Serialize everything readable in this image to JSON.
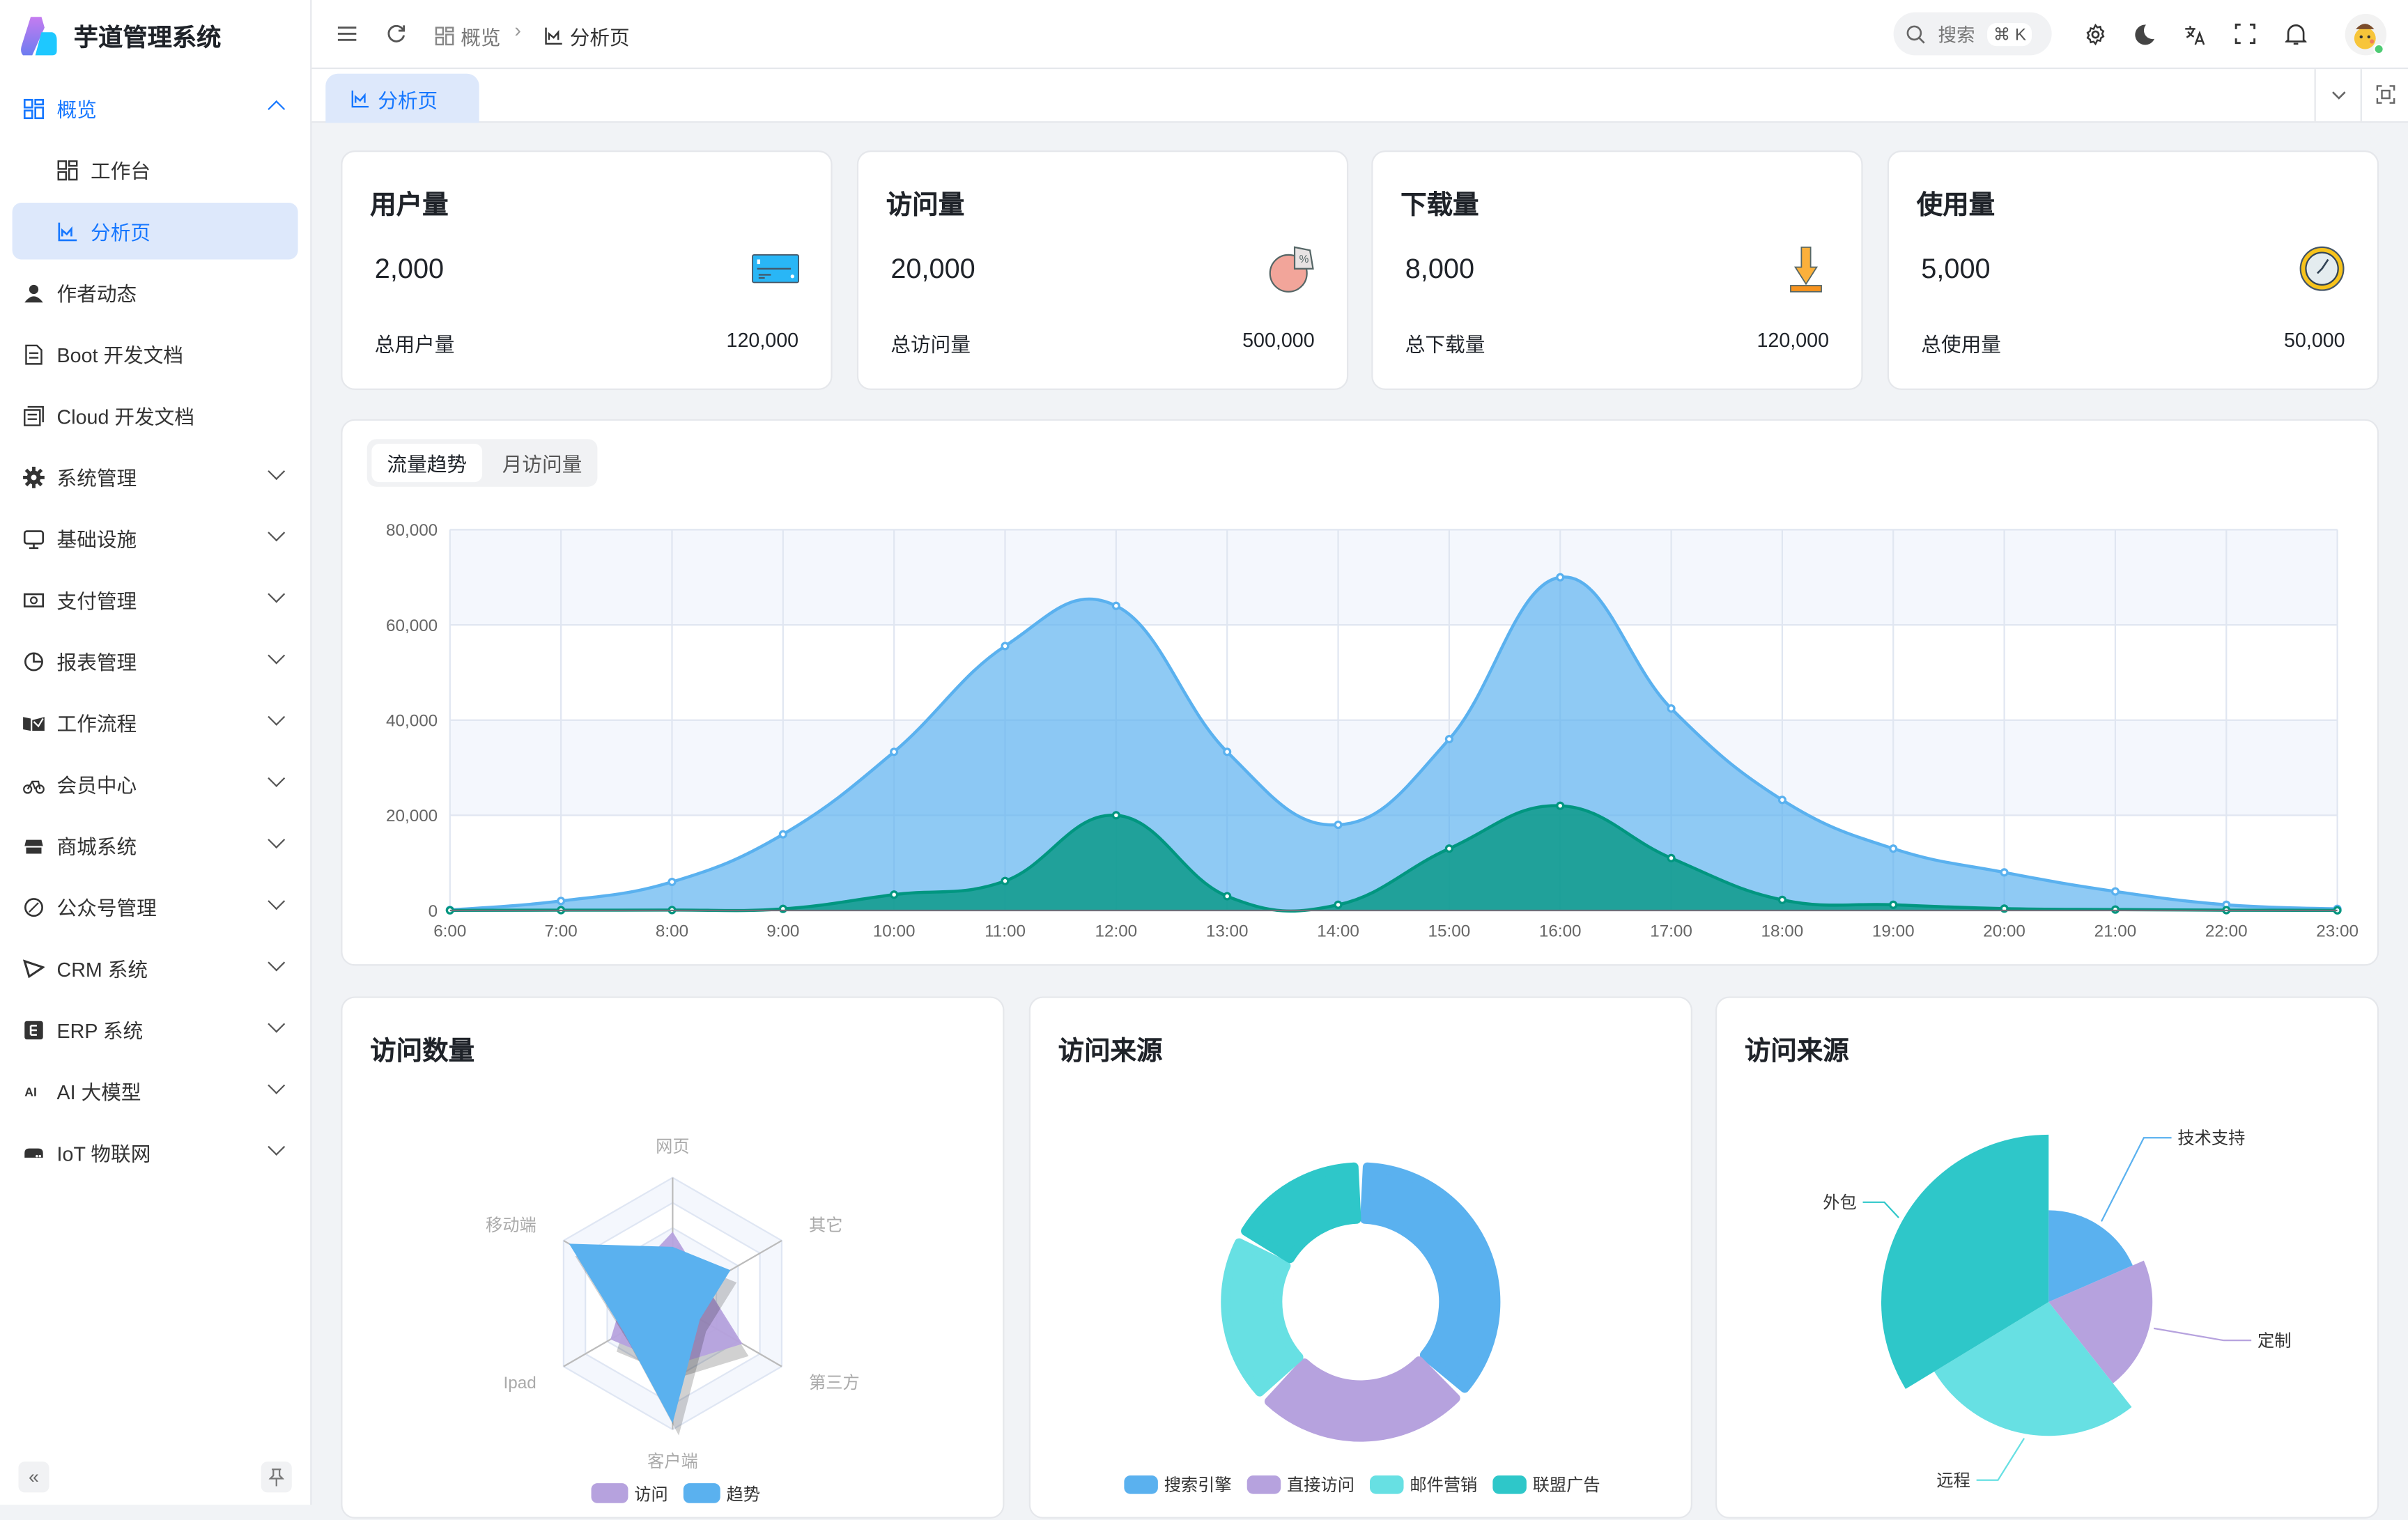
{
  "app": {
    "title": "芋道管理系统"
  },
  "sidebar": {
    "items": [
      {
        "label": "概览",
        "icon": "dashboard-icon",
        "chevron": "up",
        "level": 0,
        "state": "active-parent"
      },
      {
        "label": "工作台",
        "icon": "workspace-icon",
        "chevron": "",
        "level": 1,
        "state": ""
      },
      {
        "label": "分析页",
        "icon": "analytics-icon",
        "chevron": "",
        "level": 1,
        "state": "selected"
      },
      {
        "label": "作者动态",
        "icon": "user-icon",
        "chevron": "",
        "level": 0,
        "state": ""
      },
      {
        "label": "Boot 开发文档",
        "icon": "document-icon",
        "chevron": "",
        "level": 0,
        "state": ""
      },
      {
        "label": "Cloud 开发文档",
        "icon": "document-stack-icon",
        "chevron": "",
        "level": 0,
        "state": ""
      },
      {
        "label": "系统管理",
        "icon": "gear-icon",
        "chevron": "down",
        "level": 0,
        "state": ""
      },
      {
        "label": "基础设施",
        "icon": "monitor-icon",
        "chevron": "down",
        "level": 0,
        "state": ""
      },
      {
        "label": "支付管理",
        "icon": "payment-icon",
        "chevron": "down",
        "level": 0,
        "state": ""
      },
      {
        "label": "报表管理",
        "icon": "pie-chart-icon",
        "chevron": "down",
        "level": 0,
        "state": ""
      },
      {
        "label": "工作流程",
        "icon": "workflow-icon",
        "chevron": "down",
        "level": 0,
        "state": ""
      },
      {
        "label": "会员中心",
        "icon": "bicycle-icon",
        "chevron": "down",
        "level": 0,
        "state": ""
      },
      {
        "label": "商城系统",
        "icon": "shop-icon",
        "chevron": "down",
        "level": 0,
        "state": ""
      },
      {
        "label": "公众号管理",
        "icon": "compass-icon",
        "chevron": "down",
        "level": 0,
        "state": ""
      },
      {
        "label": "CRM 系统",
        "icon": "crm-icon",
        "chevron": "down",
        "level": 0,
        "state": ""
      },
      {
        "label": "ERP 系统",
        "icon": "erp-icon",
        "chevron": "down",
        "level": 0,
        "state": ""
      },
      {
        "label": "AI 大模型",
        "icon": "ai-icon",
        "chevron": "down",
        "level": 0,
        "state": ""
      },
      {
        "label": "IoT 物联网",
        "icon": "iot-device-icon",
        "chevron": "down",
        "level": 0,
        "state": ""
      }
    ]
  },
  "header": {
    "breadcrumb": [
      "概览",
      "分析页"
    ],
    "search": {
      "placeholder": "搜索",
      "shortcut": "⌘ K"
    },
    "icons": [
      "menu-icon",
      "refresh-icon",
      "gear-icon",
      "moon-icon",
      "translate-icon",
      "fullscreen-icon",
      "bell-icon",
      "avatar"
    ]
  },
  "tabs": [
    {
      "label": "分析页",
      "active": true
    }
  ],
  "stats": [
    {
      "title": "用户量",
      "value": "2,000",
      "total_label": "总用户量",
      "total": "120,000",
      "icon": "card-icon"
    },
    {
      "title": "访问量",
      "value": "20,000",
      "total_label": "总访问量",
      "total": "500,000",
      "icon": "pie-percent-icon"
    },
    {
      "title": "下载量",
      "value": "8,000",
      "total_label": "总下载量",
      "total": "120,000",
      "icon": "download-icon"
    },
    {
      "title": "使用量",
      "value": "5,000",
      "total_label": "总使用量",
      "total": "50,000",
      "icon": "clock-icon"
    }
  ],
  "trend": {
    "tabs": [
      "流量趋势",
      "月访问量"
    ],
    "active_tab": 0
  },
  "colors": {
    "accent": "#1677ff",
    "blue": "#5ab1ef",
    "green": "#019680",
    "purple": "#b6a2de",
    "cyan": "#67e0e3",
    "teal": "#2ec7c9"
  },
  "chart_data": [
    {
      "type": "area",
      "x": [
        "6:00",
        "7:00",
        "8:00",
        "9:00",
        "10:00",
        "11:00",
        "12:00",
        "13:00",
        "14:00",
        "15:00",
        "16:00",
        "17:00",
        "18:00",
        "19:00",
        "20:00",
        "21:00",
        "22:00",
        "23:00"
      ],
      "ylim": [
        0,
        80000
      ],
      "yticks": [
        "0",
        "20,000",
        "40,000",
        "60,000",
        "80,000"
      ],
      "grid": true,
      "series": [
        {
          "values": [
            111,
            2000,
            6000,
            16000,
            33333,
            55555,
            64000,
            33333,
            18000,
            36000,
            70000,
            42444,
            23222,
            13000,
            8000,
            4000,
            1200,
            333
          ],
          "color": "#5ab1ef"
        },
        {
          "values": [
            33,
            66,
            88,
            333,
            3333,
            6200,
            20000,
            3000,
            1200,
            13000,
            22000,
            11000,
            2221,
            1201,
            390,
            198,
            60,
            30
          ],
          "color": "#019680"
        }
      ]
    },
    {
      "type": "radar",
      "title": "访问数量",
      "indicators": [
        "网页",
        "移动端",
        "Ipad",
        "客户端",
        "第三方",
        "其它"
      ],
      "max": 100,
      "series": [
        {
          "name": "访问",
          "values": [
            57,
            40,
            57,
            49,
            64,
            30
          ],
          "color": "#b6a2de"
        },
        {
          "name": "趋势",
          "values": [
            45,
            95,
            45,
            95,
            25,
            53
          ],
          "color": "#5ab1ef"
        }
      ],
      "legend": "bottom"
    },
    {
      "type": "pie",
      "title": "访问来源",
      "donut": true,
      "slices": [
        {
          "name": "搜索引擎",
          "value": 1048,
          "color": "#5ab1ef"
        },
        {
          "name": "直接访问",
          "value": 735,
          "color": "#b6a2de"
        },
        {
          "name": "邮件营销",
          "value": 580,
          "color": "#67e0e3"
        },
        {
          "name": "联盟广告",
          "value": 484,
          "color": "#2ec7c9"
        }
      ],
      "legend": "bottom"
    },
    {
      "type": "pie",
      "title": "访问来源",
      "rose": "radius",
      "slices": [
        {
          "name": "技术支持",
          "value": 274,
          "color": "#5ab1ef"
        },
        {
          "name": "定制",
          "value": 310,
          "color": "#b6a2de"
        },
        {
          "name": "远程",
          "value": 400,
          "color": "#67e0e3"
        },
        {
          "name": "外包",
          "value": 500,
          "color": "#2ec7c9"
        }
      ]
    }
  ]
}
